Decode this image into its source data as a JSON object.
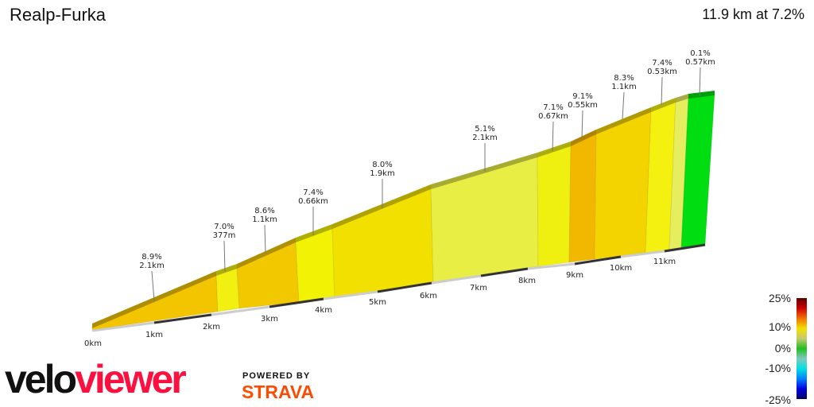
{
  "header": {
    "title": "Realp-Furka",
    "summary": "11.9 km at 7.2%"
  },
  "chart_data": {
    "type": "area",
    "title": "Realp-Furka",
    "total_distance_km": 11.9,
    "average_grade_pct": 7.2,
    "xlabel": "",
    "x_ticks": [
      "0km",
      "1km",
      "2km",
      "3km",
      "4km",
      "5km",
      "6km",
      "7km",
      "8km",
      "9km",
      "10km",
      "11km"
    ],
    "segments": [
      {
        "grade": "8.9%",
        "length": "2.1km",
        "color": "#f2c500"
      },
      {
        "grade": "7.0%",
        "length": "377m",
        "color": "#f2f010"
      },
      {
        "grade": "8.6%",
        "length": "1.1km",
        "color": "#f2c800"
      },
      {
        "grade": "7.4%",
        "length": "0.66km",
        "color": "#f2f205"
      },
      {
        "grade": "8.0%",
        "length": "1.9km",
        "color": "#f2e000"
      },
      {
        "grade": "5.1%",
        "length": "2.1km",
        "color": "#e8ee44"
      },
      {
        "grade": "7.1%",
        "length": "0.67km",
        "color": "#f0f010"
      },
      {
        "grade": "9.1%",
        "length": "0.55km",
        "color": "#f2b800"
      },
      {
        "grade": "8.3%",
        "length": "1.1km",
        "color": "#f4d400"
      },
      {
        "grade": "7.4%",
        "length": "0.53km",
        "color": "#f4f010"
      },
      {
        "grade": null,
        "length": null,
        "color": "#e6ee60"
      },
      {
        "grade": "0.1%",
        "length": "0.57km",
        "color": "#00dd10"
      }
    ],
    "legend": {
      "placement": "bottom-right",
      "labels": [
        "25%",
        "10%",
        "0%",
        "-10%",
        "-25%"
      ],
      "gradient": [
        "#5a0000",
        "#d00000",
        "#f07000",
        "#f0e000",
        "#c8c870",
        "#20c020",
        "#80c8c0",
        "#00e0e0",
        "#0080ff",
        "#0000e0",
        "#000060"
      ]
    }
  },
  "branding": {
    "logo_part1": "velo",
    "logo_part2": "viewer",
    "powered_by": "POWERED BY",
    "strava": "STRAVA"
  }
}
